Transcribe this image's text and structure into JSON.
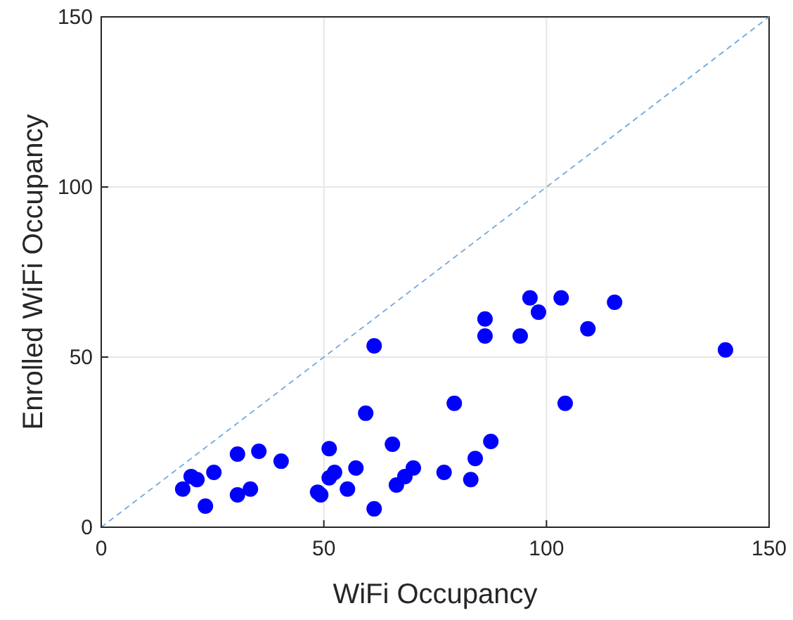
{
  "chart_data": {
    "type": "scatter",
    "xlabel": "WiFi Occupancy",
    "ylabel": "Enrolled WiFi Occupancy",
    "xlim": [
      0,
      150
    ],
    "ylim": [
      0,
      150
    ],
    "xticks": [
      0,
      50,
      100,
      150
    ],
    "yticks": [
      0,
      50,
      100,
      150
    ],
    "grid": true,
    "series": [
      {
        "marker": "circle",
        "color": "#0000ff",
        "x": [
          18.3,
          20.2,
          21.5,
          23.4,
          25.3,
          30.6,
          30.6,
          33.5,
          35.4,
          40.4,
          48.6,
          49.3,
          51.2,
          51.2,
          52.4,
          55.3,
          57.2,
          59.4,
          61.3,
          61.3,
          65.4,
          66.3,
          68.2,
          70.1,
          77.0,
          79.3,
          83.0,
          84.0,
          86.2,
          86.2,
          87.5,
          94.1,
          96.3,
          98.2,
          103.3,
          104.2,
          109.3,
          115.3,
          140.2
        ],
        "values": [
          11.2,
          14.9,
          14.0,
          6.2,
          16.1,
          21.5,
          9.5,
          11.2,
          22.3,
          19.4,
          10.3,
          9.5,
          23.1,
          14.5,
          16.1,
          11.2,
          17.4,
          33.5,
          5.4,
          53.3,
          24.4,
          12.4,
          14.9,
          17.4,
          16.1,
          36.4,
          14.0,
          20.2,
          56.2,
          61.2,
          25.2,
          56.2,
          67.4,
          63.2,
          67.4,
          36.4,
          58.3,
          66.1,
          52.1
        ]
      },
      {
        "type": "line",
        "marker": "none",
        "line_style": "dashed",
        "color": "#6fa8dc",
        "x": [
          0,
          150
        ],
        "values": [
          0,
          150
        ]
      }
    ]
  }
}
